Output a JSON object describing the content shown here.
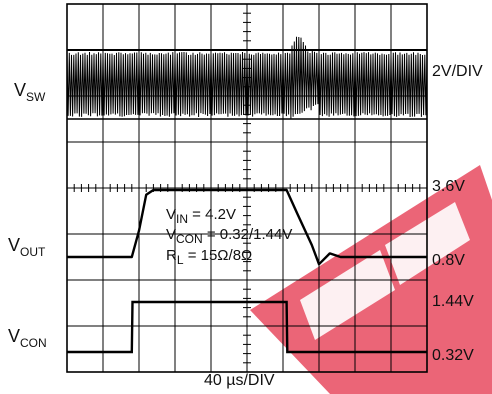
{
  "chart_data": {
    "type": "line",
    "x_axis": {
      "label": "40 µs/DIV",
      "divisions": 10
    },
    "y_axis": {
      "divisions": 8,
      "grid": true
    },
    "channels": [
      {
        "key": "sw",
        "name": {
          "main": "V",
          "sub": "SW"
        },
        "scale_label": "2V/DIV",
        "type": "switching",
        "band_top_div": 1.0,
        "band_bottom_div": 2.5,
        "transient_start_div": 6.2,
        "transient_end_div": 7.0
      },
      {
        "key": "out",
        "name": {
          "main": "V",
          "sub": "OUT"
        },
        "upper_label": "3.6V",
        "lower_label": "0.8V",
        "high": 3.6,
        "low": 0.8,
        "points": [
          [
            0,
            0.8
          ],
          [
            1.8,
            0.8
          ],
          [
            2.0,
            1.9
          ],
          [
            2.2,
            3.4
          ],
          [
            2.4,
            3.6
          ],
          [
            6.1,
            3.6
          ],
          [
            6.4,
            2.6
          ],
          [
            6.8,
            1.3
          ],
          [
            7.0,
            0.5
          ],
          [
            7.3,
            0.95
          ],
          [
            7.6,
            0.8
          ],
          [
            10,
            0.8
          ]
        ]
      },
      {
        "key": "con",
        "name": {
          "main": "V",
          "sub": "CON"
        },
        "upper_label": "1.44V",
        "lower_label": "0.32V",
        "high": 1.44,
        "low": 0.32,
        "points": [
          [
            0,
            0.32
          ],
          [
            1.8,
            0.32
          ],
          [
            1.82,
            1.44
          ],
          [
            6.1,
            1.44
          ],
          [
            6.12,
            0.32
          ],
          [
            10,
            0.32
          ]
        ]
      }
    ],
    "annotation": {
      "vin": {
        "main": "V",
        "sub": "IN",
        "rest": " = 4.2V"
      },
      "vcon": {
        "main": "V",
        "sub": "CON",
        "rest": " = 0.32/1.44V"
      },
      "rl": {
        "main": "R",
        "sub": "L",
        "rest": " = 15Ω/8Ω"
      }
    },
    "colors": {
      "grid": "#000000",
      "trace": "#000000",
      "watermark": "#e84a5f"
    }
  }
}
